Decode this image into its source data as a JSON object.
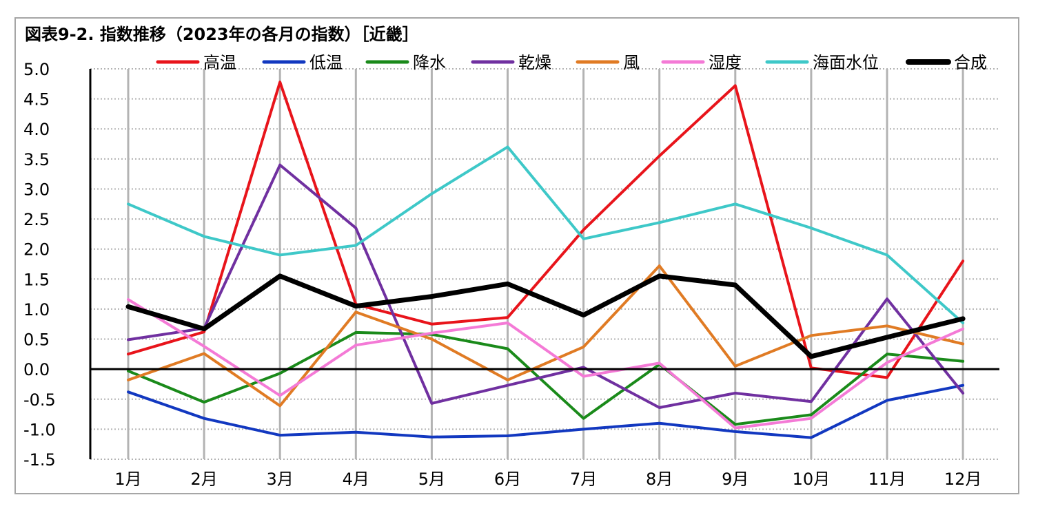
{
  "colors": {
    "high_temp": "#e8141b",
    "low_temp": "#1238c0",
    "precipitation": "#1a8a1a",
    "drought": "#7030a0",
    "wind": "#e07b24",
    "humidity": "#f47ad6",
    "sea_level": "#3ec8c8",
    "composite": "#000000",
    "grid": "#b3b3b3",
    "frame": "#a6a6a6"
  },
  "chart_data": {
    "type": "line",
    "title": "図表9-2. 指数推移（2023年の各月の指数）［近畿］",
    "xlabel": "",
    "ylabel": "",
    "ylim": [
      -1.5,
      5.0
    ],
    "y_ticks": [
      "5.0",
      "4.5",
      "4.0",
      "3.5",
      "3.0",
      "2.5",
      "2.0",
      "1.5",
      "1.0",
      "0.5",
      "0.0",
      "-0.5",
      "-1.0",
      "-1.5"
    ],
    "y_tick_values": [
      5.0,
      4.5,
      4.0,
      3.5,
      3.0,
      2.5,
      2.0,
      1.5,
      1.0,
      0.5,
      0.0,
      -0.5,
      -1.0,
      -1.5
    ],
    "categories": [
      "1月",
      "2月",
      "3月",
      "4月",
      "5月",
      "6月",
      "7月",
      "8月",
      "9月",
      "10月",
      "11月",
      "12月"
    ],
    "grid": true,
    "legend_position": "top",
    "series": [
      {
        "name": "高温",
        "color_key": "high_temp",
        "width": 4,
        "values": [
          0.25,
          0.62,
          4.78,
          1.08,
          0.75,
          0.86,
          2.32,
          3.55,
          4.72,
          0.02,
          -0.14,
          1.8
        ]
      },
      {
        "name": "低温",
        "color_key": "low_temp",
        "width": 4,
        "values": [
          -0.38,
          -0.82,
          -1.1,
          -1.05,
          -1.13,
          -1.11,
          -1.0,
          -0.9,
          -1.04,
          -1.14,
          -0.52,
          -0.27
        ]
      },
      {
        "name": "降水",
        "color_key": "precipitation",
        "width": 4,
        "values": [
          -0.03,
          -0.55,
          -0.07,
          0.61,
          0.58,
          0.34,
          -0.82,
          0.08,
          -0.92,
          -0.76,
          0.25,
          0.13
        ]
      },
      {
        "name": "乾燥",
        "color_key": "drought",
        "width": 4,
        "values": [
          0.49,
          0.68,
          3.4,
          2.35,
          -0.57,
          -0.27,
          0.03,
          -0.64,
          -0.4,
          -0.54,
          1.17,
          -0.4
        ]
      },
      {
        "name": "風",
        "color_key": "wind",
        "width": 4,
        "values": [
          -0.18,
          0.26,
          -0.61,
          0.95,
          0.5,
          -0.18,
          0.37,
          1.72,
          0.05,
          0.56,
          0.72,
          0.42
        ]
      },
      {
        "name": "湿度",
        "color_key": "humidity",
        "width": 4,
        "values": [
          1.16,
          0.38,
          -0.44,
          0.4,
          0.6,
          0.77,
          -0.12,
          0.1,
          -0.98,
          -0.82,
          0.11,
          0.67
        ]
      },
      {
        "name": "海面水位",
        "color_key": "sea_level",
        "width": 4,
        "values": [
          2.75,
          2.21,
          1.9,
          2.06,
          2.92,
          3.7,
          2.17,
          2.44,
          2.75,
          2.35,
          1.9,
          0.77
        ]
      },
      {
        "name": "合成",
        "color_key": "composite",
        "width": 7,
        "values": [
          1.04,
          0.67,
          1.55,
          1.05,
          1.21,
          1.42,
          0.9,
          1.55,
          1.4,
          0.21,
          0.53,
          0.84
        ]
      }
    ]
  }
}
